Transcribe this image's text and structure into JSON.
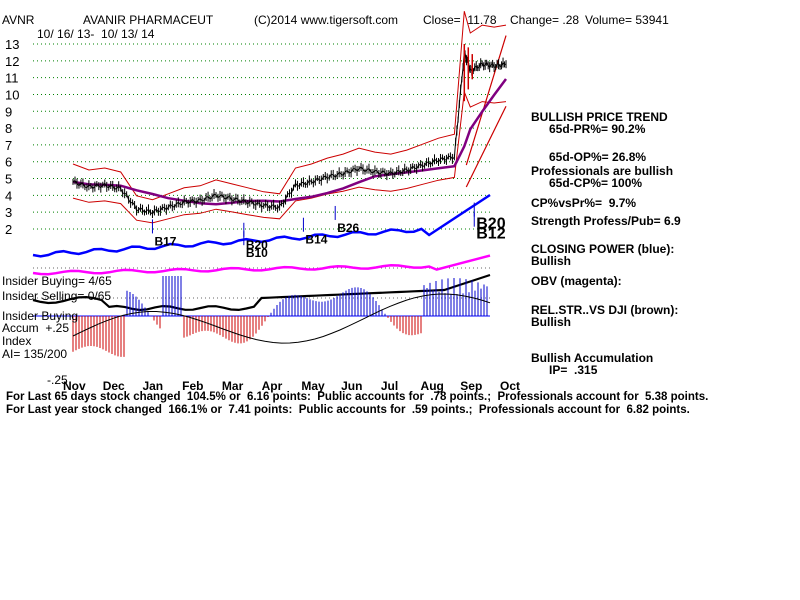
{
  "header": {
    "ticker": "AVNR",
    "company": "AVANIR PHARMACEUT",
    "copyright": "(C)2014 www.tigersoft.com",
    "close": "Close=  11.78",
    "change": "Change= .28",
    "volume": "Volume= 53941",
    "date_range": "10/ 16/ 13-  10/ 13/ 14"
  },
  "left_labels": {
    "insider_buying": "Insider Buying= 4/65",
    "insider_selling": "Insider Selling= 0/65",
    "insider_buying2": "Insider Buying",
    "accum": "Accum  +.25",
    "index": "Index",
    "ai": "AI= 135/200",
    "neg25": "-.25"
  },
  "right_panel": {
    "trend_title": "BULLISH PRICE TREND",
    "pr": "65d-PR%= 90.2%",
    "op": "65d-OP%= 26.8%",
    "pros": "Professionals are bullish",
    "cp": "65d-CP%= 100%",
    "cpvspr": "CP%vsPr%=  9.7%",
    "strength": "Strength Profess/Pub= 6.9",
    "closing_power": "CLOSING POWER (blue):",
    "closing_power_val": "Bullish",
    "obv": "OBV (magenta):",
    "relstr": "REL.STR..VS DJI (brown):",
    "relstr_val": "Bullish",
    "accum_title": "Bullish Accumulation",
    "ip": "IP=  .315"
  },
  "footer": {
    "line1": "For Last 65 days stock changed  104.5% or  6.16 points:  Public accounts for  .78 points.;  Professionals account for  5.38 points.",
    "line2": "For Last year stock changed  166.1% or  7.41 points:  Public accounts for  .59 points.;  Professionals account for  6.82 points."
  },
  "chart_data": {
    "type": "line",
    "title": "AVANIR PHARMACEUT",
    "x_months": [
      "Nov",
      "Dec",
      "Jan",
      "Feb",
      "Mar",
      "Apr",
      "May",
      "Jun",
      "Jul",
      "Aug",
      "Sep",
      "Oct"
    ],
    "y_ticks": [
      "13",
      "12",
      "11",
      "10",
      "9",
      "8",
      "7",
      "6",
      "5",
      "4",
      "3",
      "2"
    ],
    "ylim": [
      2,
      13
    ],
    "colors": {
      "price": "#000000",
      "band": "#cc0000",
      "ma": "#800080",
      "closing_power": "#0000ff",
      "obv": "#ff00ff",
      "rel_str": "#800000",
      "accum_pos": "#0000cc",
      "accum_neg": "#cc0000",
      "grid": "#008000"
    },
    "price_series": [
      {
        "m": 0.0,
        "v": 4.8
      },
      {
        "m": 0.4,
        "v": 4.5
      },
      {
        "m": 0.8,
        "v": 4.6
      },
      {
        "m": 1.2,
        "v": 4.4
      },
      {
        "m": 1.6,
        "v": 3.2
      },
      {
        "m": 2.0,
        "v": 3.0
      },
      {
        "m": 2.4,
        "v": 3.3
      },
      {
        "m": 2.8,
        "v": 3.6
      },
      {
        "m": 3.2,
        "v": 3.7
      },
      {
        "m": 3.6,
        "v": 4.0
      },
      {
        "m": 4.0,
        "v": 3.8
      },
      {
        "m": 4.4,
        "v": 3.6
      },
      {
        "m": 4.8,
        "v": 3.4
      },
      {
        "m": 5.2,
        "v": 3.3
      },
      {
        "m": 5.6,
        "v": 4.6
      },
      {
        "m": 6.0,
        "v": 4.8
      },
      {
        "m": 6.4,
        "v": 5.1
      },
      {
        "m": 6.8,
        "v": 5.3
      },
      {
        "m": 7.2,
        "v": 5.6
      },
      {
        "m": 7.6,
        "v": 5.4
      },
      {
        "m": 8.0,
        "v": 5.3
      },
      {
        "m": 8.4,
        "v": 5.5
      },
      {
        "m": 8.8,
        "v": 5.8
      },
      {
        "m": 9.2,
        "v": 6.1
      },
      {
        "m": 9.6,
        "v": 6.3
      },
      {
        "m": 9.85,
        "v": 12.5
      },
      {
        "m": 10.0,
        "v": 11.4
      },
      {
        "m": 10.3,
        "v": 11.8
      },
      {
        "m": 10.6,
        "v": 11.7
      },
      {
        "m": 10.9,
        "v": 11.8
      }
    ],
    "signals": [
      {
        "label": "B17",
        "m": 2.0,
        "v": 1.5
      },
      {
        "label": "B20",
        "m": 4.3,
        "v": 1.3
      },
      {
        "label": "B10",
        "m": 4.3,
        "v": 0.8
      },
      {
        "label": "B14",
        "m": 5.8,
        "v": 1.6
      },
      {
        "label": "B26",
        "m": 6.6,
        "v": 2.3
      },
      {
        "label": "B20",
        "m": 10.1,
        "v": 2.5
      },
      {
        "label": "B12",
        "m": 10.1,
        "v": 1.9
      }
    ]
  }
}
